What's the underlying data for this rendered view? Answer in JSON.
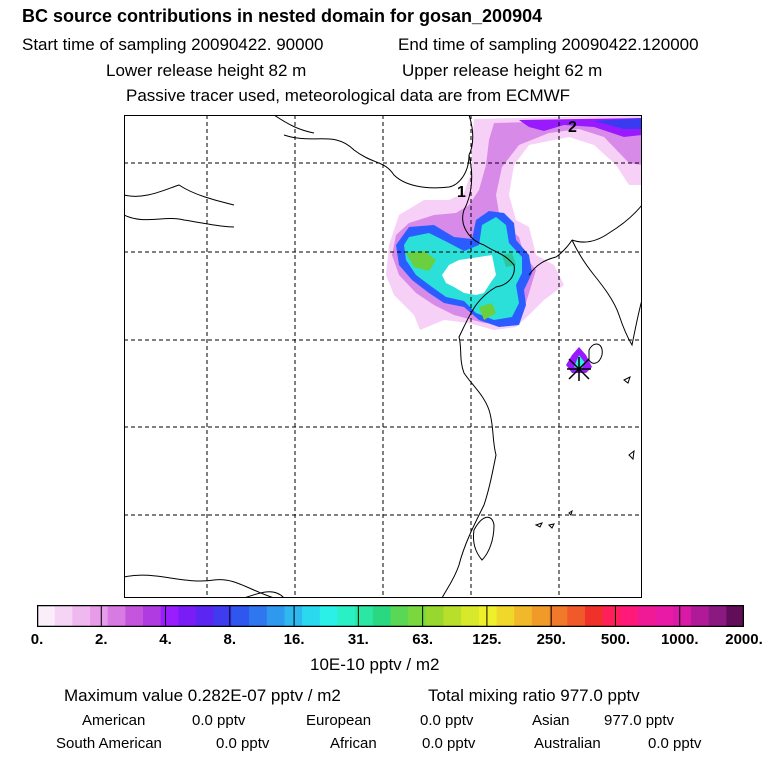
{
  "header": {
    "title": "BC  source contributions in nested domain for gosan_200904",
    "start_sampling": "Start time of sampling 20090422. 90000",
    "end_sampling": "End time of sampling 20090422.120000",
    "lower_release": "Lower release height   82 m",
    "upper_release": "Upper release height   62 m",
    "tracer_note": "Passive tracer used, meteorological data are from ECMWF"
  },
  "map": {
    "labels": [
      "1",
      "2"
    ],
    "colors": {
      "magenta_light": "#f0b0f5",
      "magenta": "#d070e8",
      "purple": "#9a1aff",
      "blue": "#2a5cff",
      "cyan": "#2ae0d8",
      "green": "#6ad040",
      "receptor": "#000000"
    }
  },
  "colorbar": {
    "colors": [
      "#fbeefb",
      "#f6d4f6",
      "#efb8ef",
      "#e79ce9",
      "#d77ae2",
      "#c455dc",
      "#b03be0",
      "#9a1dff",
      "#7a1cf6",
      "#5b26f2",
      "#3f3cf0",
      "#2f56ef",
      "#2f77ef",
      "#2f98ef",
      "#2fb8ef",
      "#2ad9ee",
      "#2af0e8",
      "#2af0c6",
      "#2ae8a4",
      "#2ad882",
      "#5ad855",
      "#7ad83e",
      "#98d82e",
      "#b8e02a",
      "#d8e82a",
      "#f0f02a",
      "#f0d82a",
      "#f0b82a",
      "#f09a2a",
      "#f07a2a",
      "#f05a2a",
      "#f0302a",
      "#ff1f5a",
      "#ff1a7a",
      "#f01a96",
      "#e81aa6",
      "#d81aa6",
      "#b01a98",
      "#8a1a80",
      "#600e58"
    ],
    "tick_labels": [
      "0.",
      "2.",
      "4.",
      "8.",
      "16.",
      "31.",
      "63.",
      "125.",
      "250.",
      "500.",
      "1000.",
      "2000."
    ],
    "unit": "10E-10 pptv / m2"
  },
  "stats": {
    "max_value": "Maximum value  0.282E-07 pptv / m2",
    "total_mixing": "Total mixing ratio      977.0 pptv",
    "regions": [
      {
        "name": "American",
        "value": "0.0 pptv"
      },
      {
        "name": "European",
        "value": "0.0 pptv"
      },
      {
        "name": "Asian",
        "value": "977.0 pptv"
      },
      {
        "name": "South American",
        "value": "0.0 pptv"
      },
      {
        "name": "African",
        "value": "0.0 pptv"
      },
      {
        "name": "Australian",
        "value": "0.0 pptv"
      }
    ]
  }
}
